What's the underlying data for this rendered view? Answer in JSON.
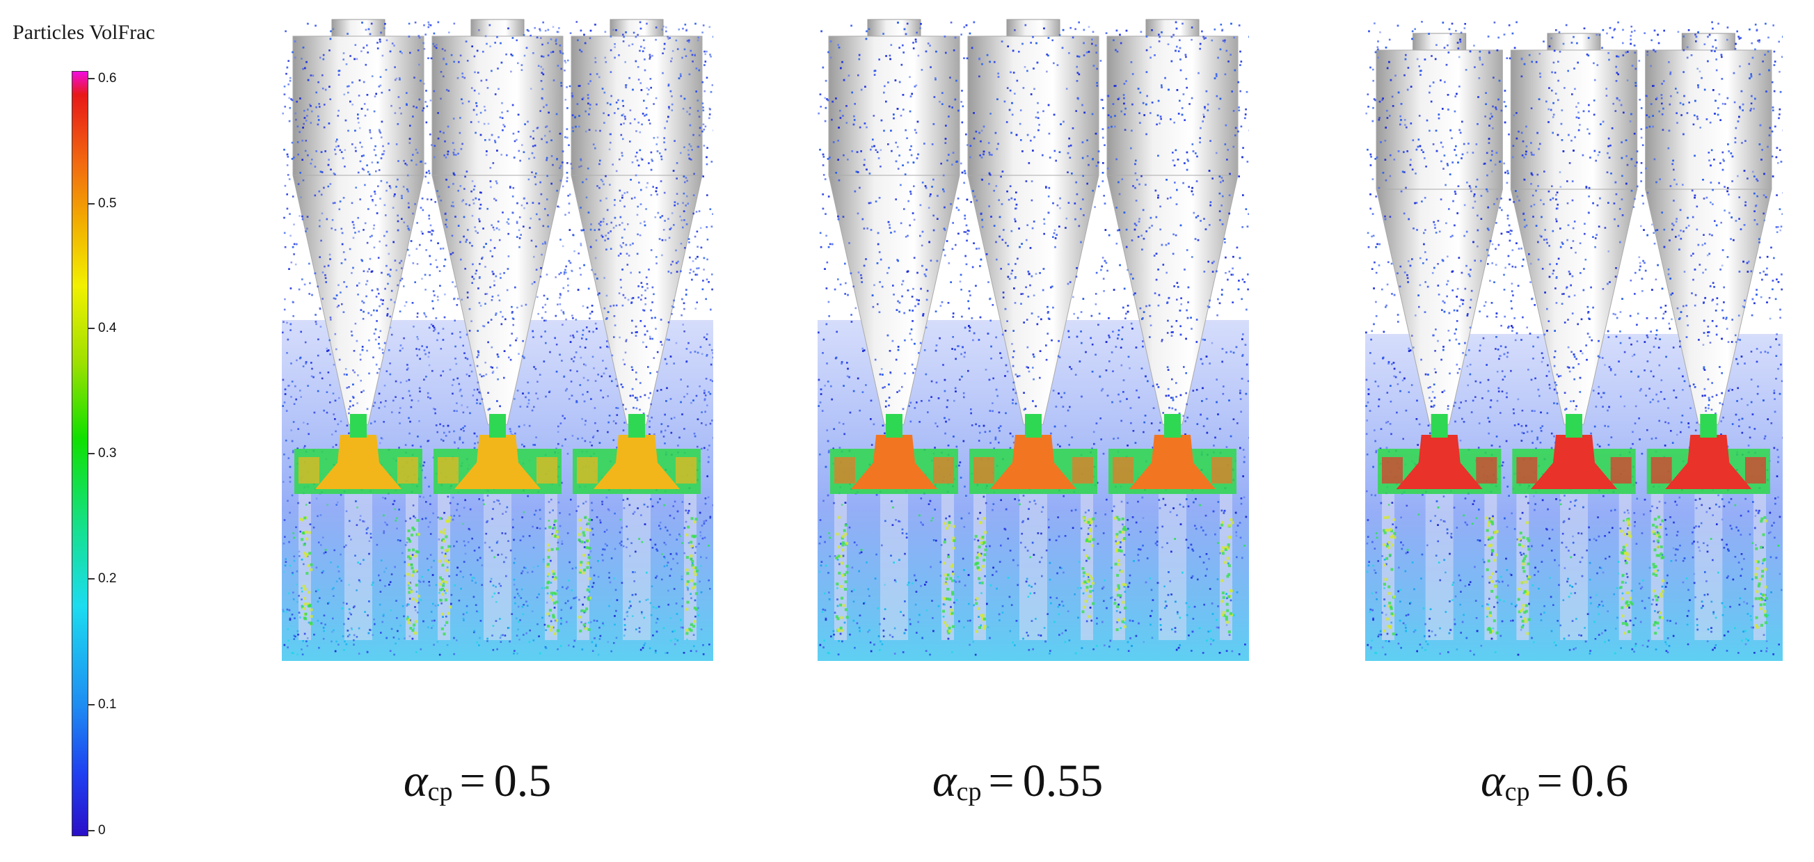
{
  "colorbar": {
    "title": "Particles VolFrac",
    "ticks": [
      "0",
      "0.1",
      "0.2",
      "0.3",
      "0.4",
      "0.5",
      "0.6"
    ],
    "tick_values": [
      0,
      0.1,
      0.2,
      0.3,
      0.4,
      0.5,
      0.6
    ]
  },
  "panels": [
    {
      "symbol": "α",
      "subscript": "cp",
      "equals": "=",
      "value": "0.5",
      "peak_color": "#f2b61a"
    },
    {
      "symbol": "α",
      "subscript": "cp",
      "equals": "=",
      "value": "0.55",
      "peak_color": "#f27522"
    },
    {
      "symbol": "α",
      "subscript": "cp",
      "equals": "=",
      "value": "0.6",
      "peak_color": "#e8322a"
    }
  ]
}
